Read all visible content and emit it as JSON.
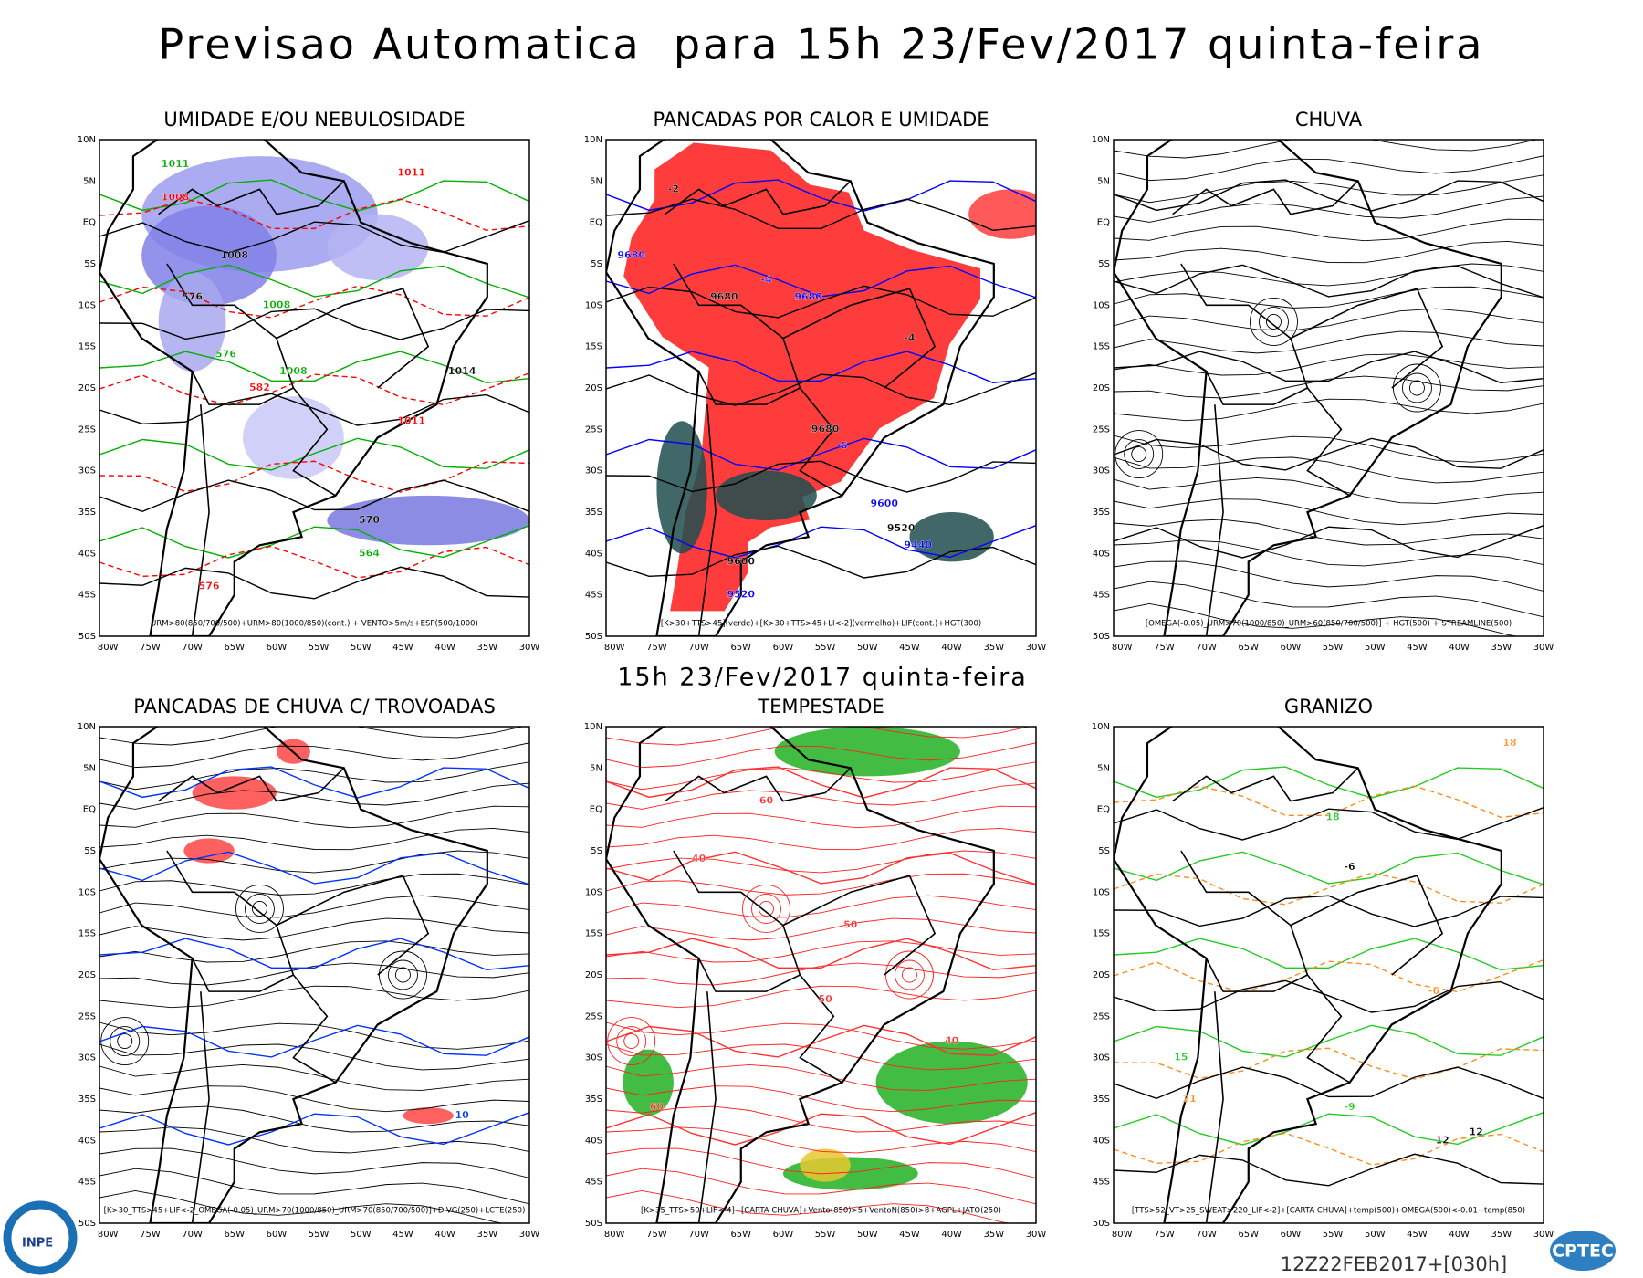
{
  "header": {
    "title": "Previsao Automatica  para 15h 23/Fev/2017 quinta-feira"
  },
  "subtitle": "15h 23/Fev/2017 quinta-feira",
  "axes": {
    "lat_labels": [
      "10N",
      "5N",
      "EQ",
      "5S",
      "10S",
      "15S",
      "20S",
      "25S",
      "30S",
      "35S",
      "40S",
      "45S",
      "50S"
    ],
    "lon_labels": [
      "80W",
      "75W",
      "70W",
      "65W",
      "60W",
      "55W",
      "50W",
      "45W",
      "40W",
      "35W",
      "30W"
    ]
  },
  "panels": [
    {
      "title": "UMIDADE E/OU NEBULOSIDADE",
      "legend": "URM>80(850/700/500)+URM>80(1000/850)(cont.) + VENTO>5m/s+ESP(500/1000)",
      "labels": [
        "1011",
        "1008",
        "1008",
        "1008",
        "1011",
        "1014",
        "1008",
        "1011",
        "576",
        "576",
        "582",
        "570",
        "564",
        "576"
      ]
    },
    {
      "title": "PANCADAS POR CALOR E UMIDADE",
      "legend": "[K>30+TTS>45](verde)+[K>30+TTS>45+LI<-2](vermelho)+LIF(cont.)+HGT(300)",
      "labels": [
        "9680",
        "9680",
        "9680",
        "9680",
        "9600",
        "9520",
        "9440",
        "9600",
        "9520",
        "-2",
        "-4",
        "-4",
        "-6"
      ]
    },
    {
      "title": "CHUVA",
      "legend": "[OMEGA(-0.05)_URM>70(1000/850)_URM>60(850/700/500)] + HGT(500) + STREAMLINE(500)",
      "labels": []
    },
    {
      "title": "PANCADAS DE CHUVA C/ TROVOADAS",
      "legend": "[K>30_TTS>45+LIF<-2_OMEGA(-0.05)_URM>70(1000/850)_URM>70(850/700/500)]+DIVG(250)+LCTE(250)",
      "labels": [
        "10"
      ]
    },
    {
      "title": "TEMPESTADE",
      "legend": "[K>35_TTS>50+LIF<-4]+[CARTA CHUVA]+Vento(850)>5+VentoN(850)>8+AGPL+JATO(250)",
      "labels": [
        "40",
        "50",
        "60",
        "40",
        "50",
        "60"
      ]
    },
    {
      "title": "GRANIZO",
      "legend": "[TTS>52_VT>25_SWEAT>220_LIF<-2]+[CARTA CHUVA]+temp(500)+OMEGA(500)<-0.01+temp(850)",
      "labels": [
        "18",
        "18",
        "12",
        "15",
        "21",
        "-6",
        "-9",
        "-6",
        "12"
      ]
    }
  ],
  "footer": {
    "run": "12Z22FEB2017+[030h]",
    "logo_left": "INPE",
    "logo_right": "CPTEC"
  }
}
